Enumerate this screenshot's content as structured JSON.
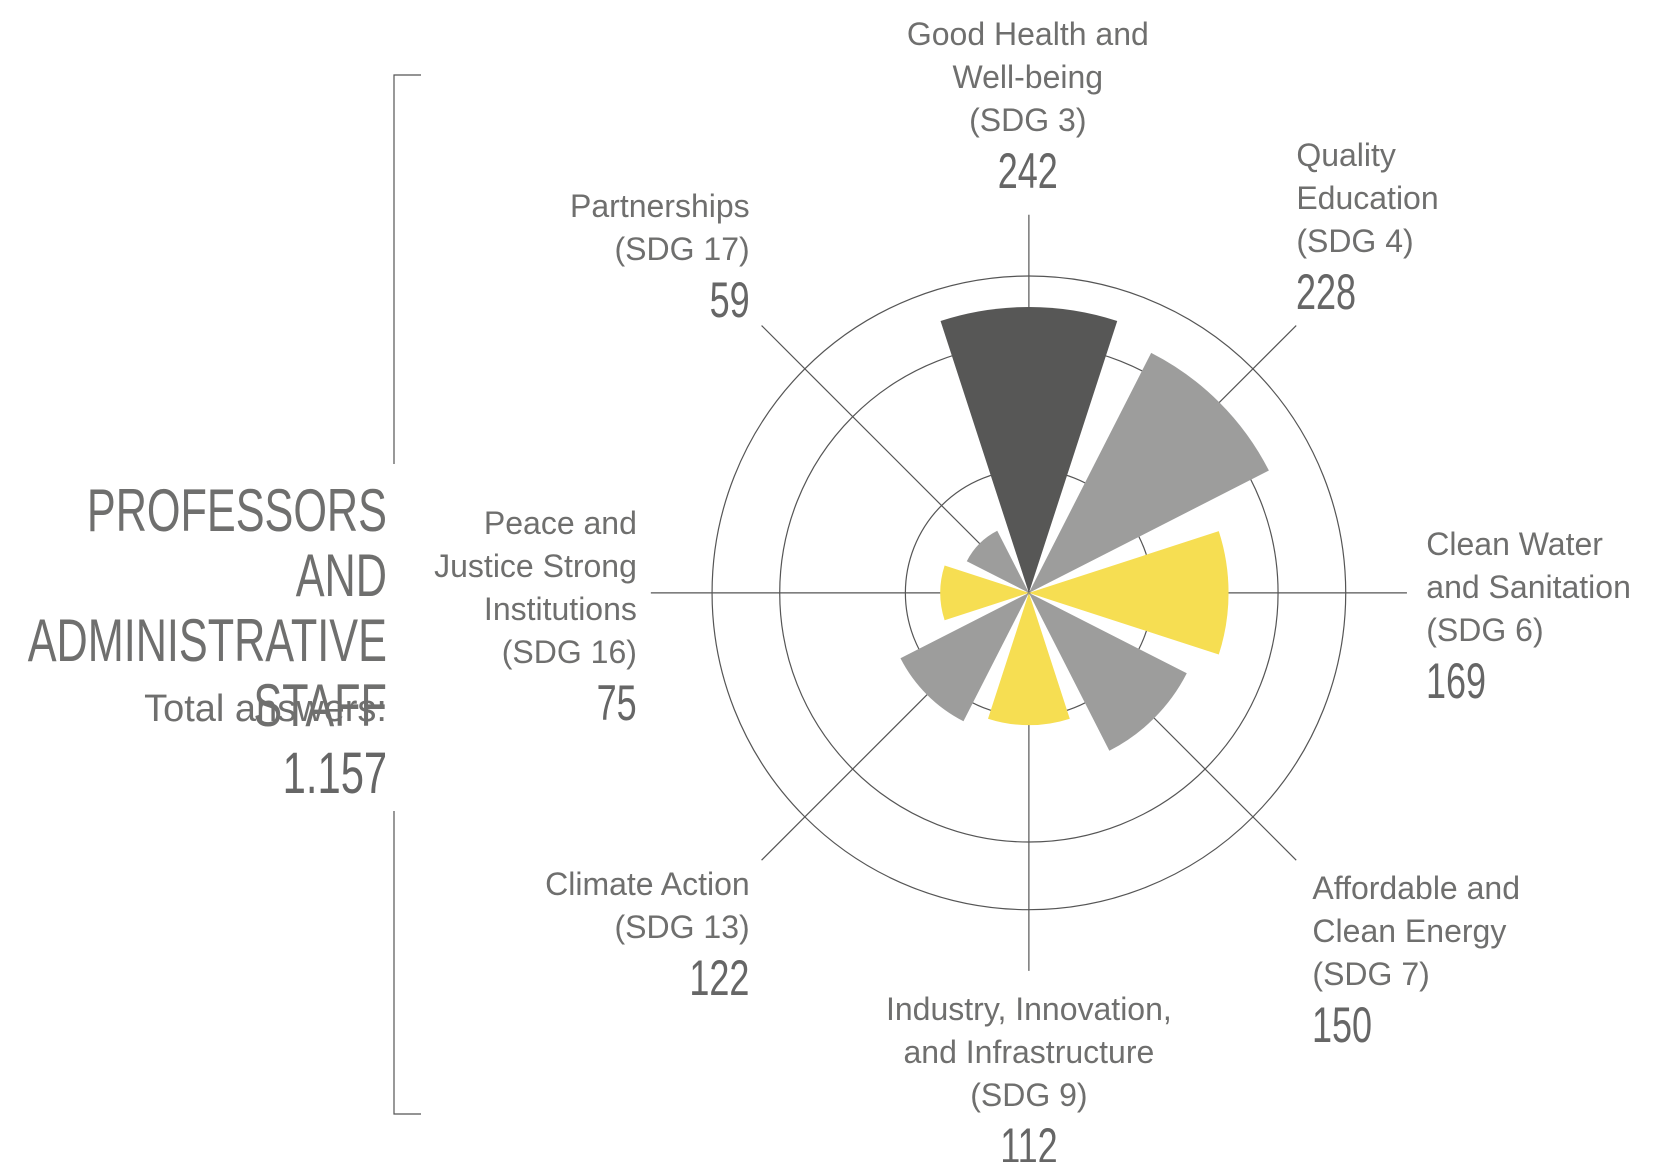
{
  "chart_data": {
    "type": "polar_area",
    "title": "PROFESSORS AND\nADMINISTRATIVE\nSTAFF",
    "subtitle": "Total answers:",
    "total_answers": "1.157",
    "categories": [
      "Good Health and\nWell-being\n(SDG 3)",
      "Quality\nEducation\n(SDG 4)",
      "Clean Water\nand Sanitation\n(SDG 6)",
      "Affordable and\nClean Energy\n(SDG 7)",
      "Industry, Innovation,\nand Infrastructure\n(SDG 9)",
      "Climate Action\n(SDG 13)",
      "Peace and\nJustice Strong\nInstitutions\n(SDG 16)",
      "Partnerships\n(SDG 17)"
    ],
    "values": [
      242,
      228,
      169,
      150,
      112,
      122,
      75,
      59
    ],
    "colors": [
      "#575756",
      "#9d9d9c",
      "#f6de52",
      "#9d9d9c",
      "#f6de52",
      "#9d9d9c",
      "#f6de52",
      "#9d9d9c"
    ],
    "ylim": [
      0,
      320
    ]
  }
}
